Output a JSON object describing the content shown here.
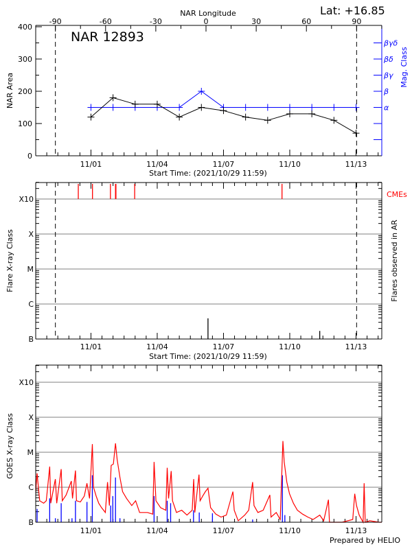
{
  "header": {
    "lat_label": "Lat: +16.85"
  },
  "footer": {
    "credit": "Prepared by HELIO"
  },
  "x_range": [
    "2021-10-29T11:59",
    "2021-11-14T03:59"
  ],
  "x_ticks": [
    {
      "date": "2021-11-01T00:00",
      "label": "11/01"
    },
    {
      "date": "2021-11-04T00:00",
      "label": "11/04"
    },
    {
      "date": "2021-11-07T00:00",
      "label": "11/07"
    },
    {
      "date": "2021-11-10T00:00",
      "label": "11/10"
    },
    {
      "date": "2021-11-13T00:00",
      "label": "11/13"
    }
  ],
  "colors": {
    "area": "#000000",
    "mag": "#0000ff",
    "cme": "#ff0000",
    "goes_long": "#ff0000",
    "goes_short": "#0000ff",
    "grid": "#999999"
  },
  "chart_data": [
    {
      "type": "line",
      "title": "NAR 12893",
      "ylabel": "NAR Area",
      "right_ylabel": "Mag. Class",
      "top_xlabel": "NAR Longitude",
      "xlabel": "Start Time: (2021/10/29 11:59)",
      "ylim": [
        0,
        400
      ],
      "y_ticks": [
        0,
        100,
        200,
        300,
        400
      ],
      "top_ticks": [
        -90,
        -60,
        -30,
        0,
        30,
        60,
        90
      ],
      "limb_longitudes": [
        -90,
        90
      ],
      "longitude_anchor": {
        "date": "2021-11-06T05:00",
        "lon": 0
      },
      "mag_class_order": [
        "α",
        "β",
        "βγ",
        "βδ",
        "βγδ"
      ],
      "series": [
        {
          "name": "NAR Area",
          "x": [
            "2021-11-01T00:00",
            "2021-11-02T00:00",
            "2021-11-03T00:00",
            "2021-11-04T00:00",
            "2021-11-05T00:00",
            "2021-11-06T00:00",
            "2021-11-07T00:00",
            "2021-11-08T00:00",
            "2021-11-09T00:00",
            "2021-11-10T00:00",
            "2021-11-11T00:00",
            "2021-11-12T00:00",
            "2021-11-13T00:00"
          ],
          "values": [
            120,
            180,
            160,
            160,
            120,
            150,
            140,
            120,
            110,
            130,
            130,
            110,
            70
          ]
        },
        {
          "name": "Mag. Class",
          "x": [
            "2021-11-01T00:00",
            "2021-11-02T00:00",
            "2021-11-03T00:00",
            "2021-11-04T00:00",
            "2021-11-05T00:00",
            "2021-11-06T00:00",
            "2021-11-07T00:00",
            "2021-11-08T00:00",
            "2021-11-09T00:00",
            "2021-11-10T00:00",
            "2021-11-11T00:00",
            "2021-11-12T00:00",
            "2021-11-13T00:00"
          ],
          "values": [
            "α",
            "α",
            "α",
            "α",
            "α",
            "β",
            "α",
            "α",
            "α",
            "α",
            "α",
            "α",
            "α"
          ]
        }
      ]
    },
    {
      "type": "bar",
      "ylabel": "Flare X-ray Class",
      "right_ylabel": "Flares observed in AR",
      "cme_label": "CMEs",
      "xlabel": "Start Time: (2021/10/29 11:59)",
      "y_scale": "log",
      "ylim": [
        1e-07,
        0.0028
      ],
      "y_ticks": [
        {
          "value": 1e-07,
          "label": "B"
        },
        {
          "value": 1e-06,
          "label": "C"
        },
        {
          "value": 1e-05,
          "label": "M"
        },
        {
          "value": 0.0001,
          "label": "X"
        },
        {
          "value": 0.001,
          "label": "X10"
        }
      ],
      "flares": [
        {
          "time": "2021-11-06T07:10",
          "flux": 3.9e-07
        },
        {
          "time": "2021-11-11T08:35",
          "flux": 1.7e-07
        }
      ],
      "cmes": [
        "2021-10-31T10:15",
        "2021-11-01T01:40",
        "2021-11-01T21:10",
        "2021-11-02T02:40",
        "2021-11-02T03:10",
        "2021-11-02T23:30",
        "2021-11-09T15:35"
      ]
    },
    {
      "type": "line",
      "ylabel": "GOES X-ray Class",
      "y_scale": "log",
      "ylim": [
        1e-07,
        0.003
      ],
      "y_ticks": [
        {
          "value": 1e-07,
          "label": "B"
        },
        {
          "value": 1e-06,
          "label": "C"
        },
        {
          "value": 1e-05,
          "label": "M"
        },
        {
          "value": 0.0001,
          "label": "X"
        },
        {
          "value": 0.001,
          "label": "X10"
        }
      ],
      "series": [
        {
          "band": "long",
          "points": [
            [
              "2021-10-29T12:00",
              7.5e-07
            ],
            [
              "2021-10-29T13:30",
              2.5e-06
            ],
            [
              "2021-10-29T16:20",
              4.1e-07
            ],
            [
              "2021-10-29T20:40",
              3.5e-07
            ],
            [
              "2021-10-29T23:30",
              4.1e-07
            ],
            [
              "2021-10-30T03:10",
              3.9e-06
            ],
            [
              "2021-10-30T04:20",
              3.5e-07
            ],
            [
              "2021-10-30T09:20",
              1.7e-06
            ],
            [
              "2021-10-30T10:50",
              3.5e-07
            ],
            [
              "2021-10-30T15:40",
              3.3e-06
            ],
            [
              "2021-10-30T16:50",
              4.1e-07
            ],
            [
              "2021-10-30T21:00",
              6e-07
            ],
            [
              "2021-10-31T02:40",
              1.5e-06
            ],
            [
              "2021-10-31T04:00",
              4.8e-07
            ],
            [
              "2021-10-31T07:10",
              3e-06
            ],
            [
              "2021-10-31T08:20",
              4.1e-07
            ],
            [
              "2021-10-31T12:30",
              3.8e-07
            ],
            [
              "2021-10-31T16:50",
              5.6e-07
            ],
            [
              "2021-10-31T19:40",
              1.3e-06
            ],
            [
              "2021-10-31T22:30",
              4.8e-07
            ],
            [
              "2021-11-01T01:30",
              1.7e-05
            ],
            [
              "2021-11-01T02:50",
              1e-06
            ],
            [
              "2021-11-01T05:40",
              5.6e-07
            ],
            [
              "2021-11-01T08:30",
              3.5e-07
            ],
            [
              "2021-11-01T11:30",
              2.6e-07
            ],
            [
              "2021-11-01T15:40",
              1.9e-07
            ],
            [
              "2021-11-01T18:00",
              1.4e-06
            ],
            [
              "2021-11-01T20:00",
              3e-07
            ],
            [
              "2021-11-01T22:00",
              4.2e-06
            ],
            [
              "2021-11-02T00:20",
              4.6e-06
            ],
            [
              "2021-11-02T02:40",
              1.8e-05
            ],
            [
              "2021-11-02T04:30",
              6.2e-06
            ],
            [
              "2021-11-02T07:30",
              1.9e-06
            ],
            [
              "2021-11-02T10:20",
              7.5e-07
            ],
            [
              "2021-11-02T14:40",
              4.8e-07
            ],
            [
              "2021-11-02T20:20",
              3e-07
            ],
            [
              "2021-11-03T00:30",
              4.1e-07
            ],
            [
              "2021-11-03T04:50",
              1.9e-07
            ],
            [
              "2021-11-03T13:25",
              1.9e-07
            ],
            [
              "2021-11-03T19:10",
              1.7e-07
            ],
            [
              "2021-11-03T20:35",
              5.3e-06
            ],
            [
              "2021-11-03T22:35",
              4.1e-07
            ],
            [
              "2021-11-04T03:40",
              2.6e-07
            ],
            [
              "2021-11-04T09:20",
              2.2e-07
            ],
            [
              "2021-11-04T10:50",
              3.6e-06
            ],
            [
              "2021-11-04T12:20",
              4.8e-07
            ],
            [
              "2021-11-04T15:10",
              2.9e-06
            ],
            [
              "2021-11-04T16:35",
              4.1e-07
            ],
            [
              "2021-11-04T20:55",
              1.9e-07
            ],
            [
              "2021-11-05T02:35",
              2.2e-07
            ],
            [
              "2021-11-05T08:20",
              1.6e-07
            ],
            [
              "2021-11-05T14:00",
              2.2e-07
            ],
            [
              "2021-11-05T15:40",
              1.7e-06
            ],
            [
              "2021-11-05T16:50",
              1.9e-07
            ],
            [
              "2021-11-05T21:25",
              2.3e-06
            ],
            [
              "2021-11-05T22:35",
              4.1e-07
            ],
            [
              "2021-11-06T01:25",
              5.6e-07
            ],
            [
              "2021-11-06T04:20",
              7.5e-07
            ],
            [
              "2021-11-06T07:10",
              9.4e-07
            ],
            [
              "2021-11-06T10:00",
              2.6e-07
            ],
            [
              "2021-11-06T15:40",
              1.7e-07
            ],
            [
              "2021-11-06T21:20",
              1.4e-07
            ],
            [
              "2021-11-07T03:05",
              1.6e-07
            ],
            [
              "2021-11-07T10:15",
              7.5e-07
            ],
            [
              "2021-11-07T11:40",
              2.2e-07
            ],
            [
              "2021-11-07T16:00",
              1.1e-07
            ],
            [
              "2021-11-07T23:05",
              1.6e-07
            ],
            [
              "2021-11-08T03:25",
              2.2e-07
            ],
            [
              "2021-11-08T07:40",
              1.4e-06
            ],
            [
              "2021-11-08T09:10",
              3e-07
            ],
            [
              "2021-11-08T13:25",
              1.9e-07
            ],
            [
              "2021-11-08T19:10",
              2.2e-07
            ],
            [
              "2021-11-09T02:25",
              6e-07
            ],
            [
              "2021-11-09T03:40",
              1.4e-07
            ],
            [
              "2021-11-09T09:20",
              1.9e-07
            ],
            [
              "2021-11-09T13:40",
              1.2e-07
            ],
            [
              "2021-11-09T16:35",
              2.1e-05
            ],
            [
              "2021-11-09T18:00",
              5.3e-06
            ],
            [
              "2021-11-09T20:50",
              1.4e-06
            ],
            [
              "2021-11-09T23:45",
              6.5e-07
            ],
            [
              "2021-11-10T04:00",
              3.5e-07
            ],
            [
              "2021-11-10T08:20",
              2.2e-07
            ],
            [
              "2021-11-10T14:00",
              1.7e-07
            ],
            [
              "2021-11-10T19:40",
              1.4e-07
            ],
            [
              "2021-11-11T01:25",
              1.2e-07
            ],
            [
              "2021-11-11T08:35",
              1.6e-07
            ],
            [
              "2021-11-11T12:50",
              1.1e-07
            ],
            [
              "2021-11-11T18:00",
              4.4e-07
            ],
            [
              "2021-11-11T19:10",
              1e-07
            ],
            [
              "2021-11-12T08:50",
              1e-07
            ],
            [
              "2021-11-12T20:25",
              1.2e-07
            ],
            [
              "2021-11-12T22:35",
              6.5e-07
            ],
            [
              "2021-11-13T00:30",
              3e-07
            ],
            [
              "2021-11-13T03:25",
              1.6e-07
            ],
            [
              "2021-11-13T07:40",
              1e-07
            ],
            [
              "2021-11-13T08:50",
              1.3e-06
            ],
            [
              "2021-11-13T10:00",
              1e-07
            ],
            [
              "2021-11-13T14:55",
              1.1e-07
            ],
            [
              "2021-11-14T01:00",
              1e-07
            ],
            [
              "2021-11-14T03:59",
              1e-07
            ]
          ]
        },
        {
          "band": "short",
          "points": [
            [
              "2021-10-29T13:30",
              2.4e-07
            ],
            [
              "2021-10-30T03:10",
              4.8e-07
            ],
            [
              "2021-10-30T09:20",
              1.3e-07
            ],
            [
              "2021-10-30T15:40",
              3.5e-07
            ],
            [
              "2021-10-31T03:25",
              1.3e-07
            ],
            [
              "2021-10-31T07:10",
              4.1e-07
            ],
            [
              "2021-10-31T19:40",
              3.8e-07
            ],
            [
              "2021-11-01T01:30",
              2.2e-06
            ],
            [
              "2021-11-01T21:25",
              3e-07
            ],
            [
              "2021-11-01T23:45",
              5.6e-07
            ],
            [
              "2021-11-02T02:40",
              1.9e-06
            ],
            [
              "2021-11-02T07:30",
              1.3e-07
            ],
            [
              "2021-11-03T20:35",
              5.6e-07
            ],
            [
              "2021-11-04T10:50",
              4.1e-07
            ],
            [
              "2021-11-04T14:35",
              3.5e-07
            ],
            [
              "2021-11-05T15:25",
              2.2e-07
            ],
            [
              "2021-11-05T21:40",
              1.9e-07
            ],
            [
              "2021-11-06T12:00",
              1.8e-07
            ],
            [
              "2021-11-08T07:40",
              1.2e-07
            ],
            [
              "2021-11-09T16:00",
              2.2e-06
            ],
            [
              "2021-11-09T18:40",
              1.6e-07
            ]
          ]
        }
      ]
    }
  ]
}
